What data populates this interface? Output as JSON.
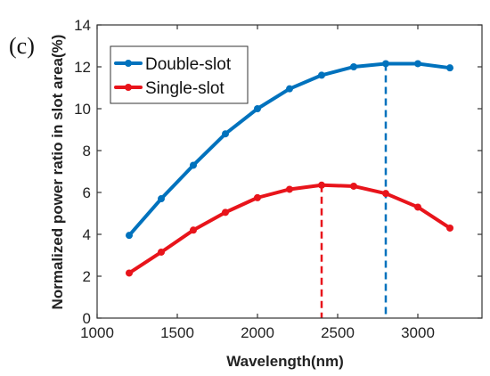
{
  "chart_data": {
    "type": "line",
    "panel_label": "(c)",
    "xlabel": "Wavelength(nm)",
    "ylabel": "Normalized power ratio in slot area(%)",
    "xlim": [
      1000,
      3400
    ],
    "ylim": [
      0,
      14
    ],
    "xticks": [
      1000,
      1500,
      2000,
      2500,
      3000
    ],
    "yticks": [
      0,
      2,
      4,
      6,
      8,
      10,
      12,
      14
    ],
    "grid": false,
    "legend_position": "top-left",
    "x": [
      1200,
      1400,
      1600,
      1800,
      2000,
      2200,
      2400,
      2600,
      2800,
      3000,
      3200
    ],
    "series": [
      {
        "name": "Double-slot",
        "color": "#0072BD",
        "values": [
          3.95,
          5.7,
          7.3,
          8.8,
          10.0,
          10.95,
          11.6,
          12.0,
          12.15,
          12.15,
          11.95
        ],
        "peak_marker_x": 2800,
        "peak_marker_y": 12.15
      },
      {
        "name": "Single-slot",
        "color": "#E8141B",
        "values": [
          2.15,
          3.15,
          4.2,
          5.05,
          5.75,
          6.15,
          6.35,
          6.3,
          5.95,
          5.3,
          4.3
        ],
        "peak_marker_x": 2400,
        "peak_marker_y": 6.35
      }
    ]
  }
}
